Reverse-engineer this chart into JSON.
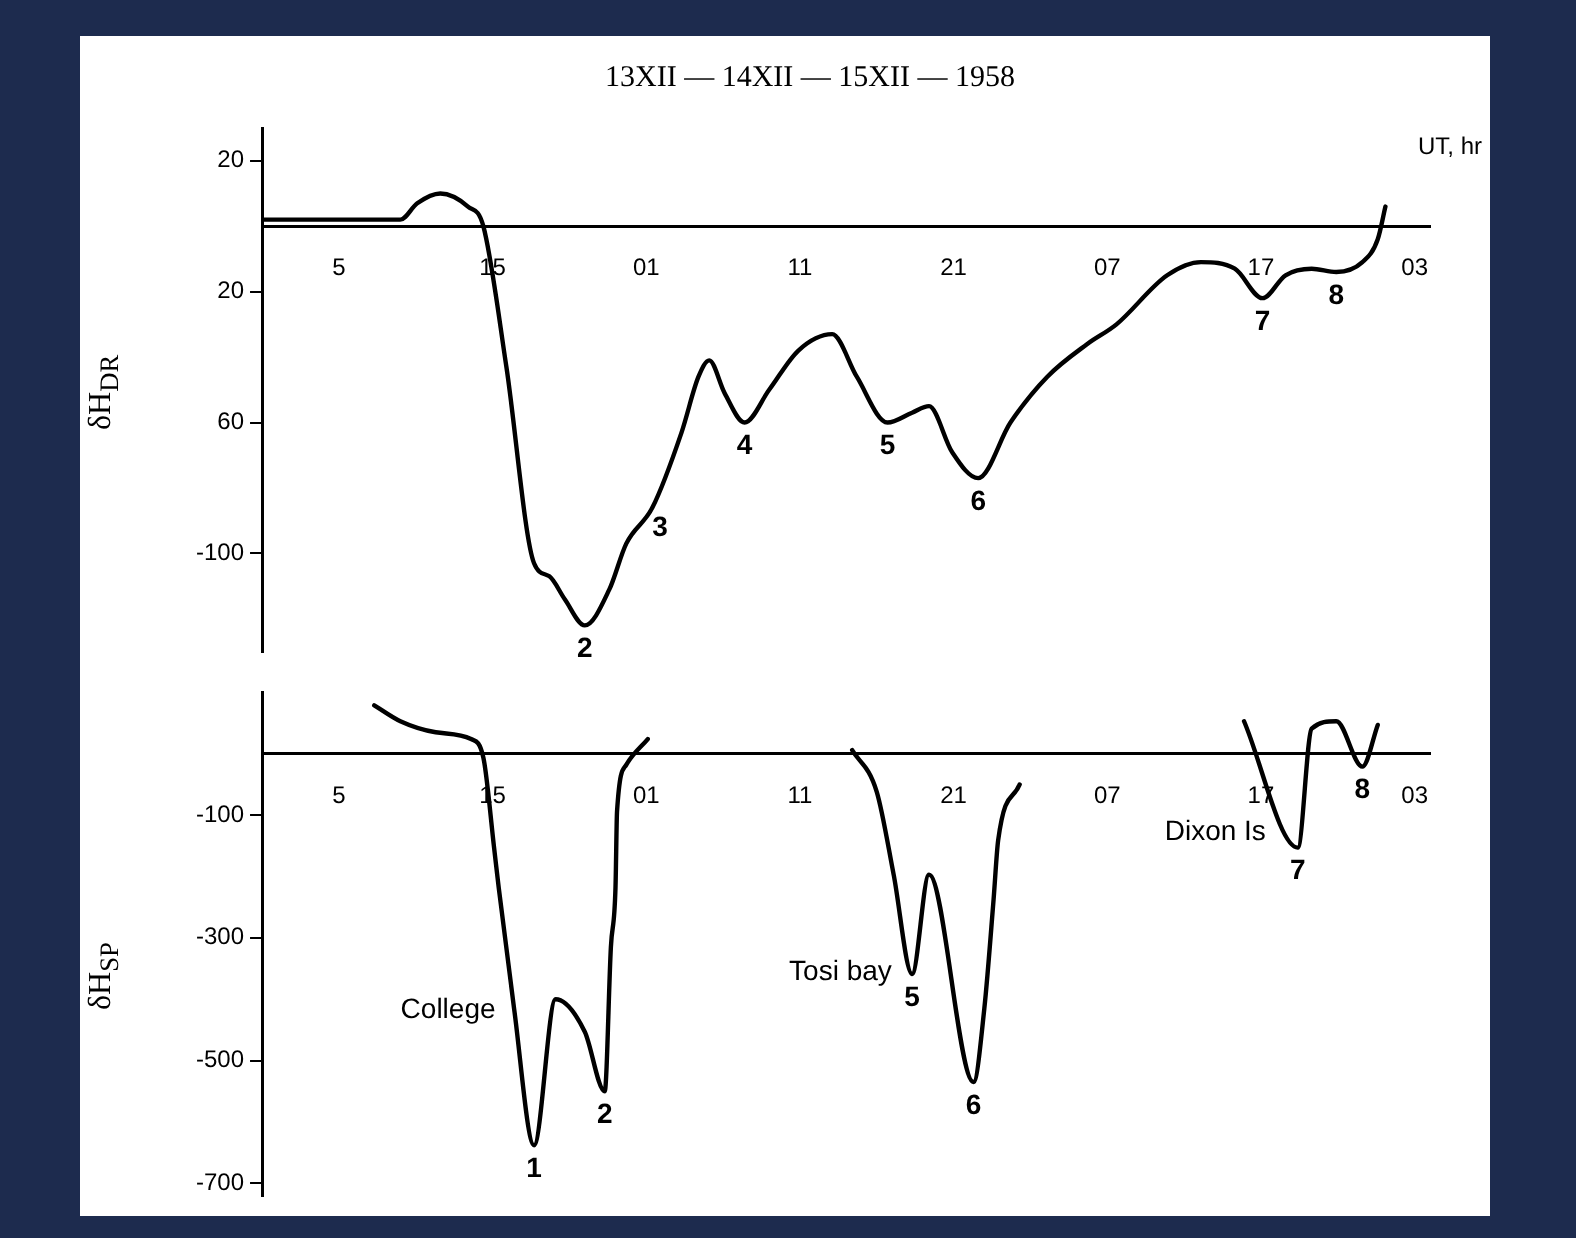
{
  "chart_data": [
    {
      "type": "line",
      "title": "13XII — 14XII — 15XII — 1958",
      "xlabel": "UT, hr",
      "ylabel": "δH$_{DR}$",
      "xlim": [
        "1958-12-13T00:00",
        "1958-12-16T04:00"
      ],
      "ylim": [
        -130,
        30
      ],
      "xticks": [
        {
          "value": "1958-12-13T05:00",
          "label": "5"
        },
        {
          "value": "1958-12-13T15:00",
          "label": "15"
        },
        {
          "value": "1958-12-14T01:00",
          "label": "01"
        },
        {
          "value": "1958-12-14T11:00",
          "label": "11"
        },
        {
          "value": "1958-12-14T21:00",
          "label": "21"
        },
        {
          "value": "1958-12-15T07:00",
          "label": "07"
        },
        {
          "value": "1958-12-15T17:00",
          "label": "17"
        },
        {
          "value": "1958-12-16T03:00",
          "label": "03"
        }
      ],
      "yticks": [
        20,
        {
          "value": -20,
          "label": "20"
        },
        {
          "value": -60,
          "label": "60"
        },
        -100
      ],
      "grid": false,
      "legend": false,
      "marker": "none",
      "line_style": "solid",
      "series": [
        {
          "color": "#000000",
          "x": [
            "1958-12-13T00:00",
            "1958-12-13T09:00",
            "1958-12-13T10:06",
            "1958-12-13T11:36",
            "1958-12-13T13:24",
            "1958-12-13T14:24",
            "1958-12-13T15:54",
            "1958-12-13T17:42",
            "1958-12-13T18:42",
            "1958-12-13T19:42",
            "1958-12-13T21:00",
            "1958-12-13T22:36",
            "1958-12-13T23:42",
            "1958-12-14T01:24",
            "1958-12-14T03:18",
            "1958-12-14T04:24",
            "1958-12-14T05:06",
            "1958-12-14T06:06",
            "1958-12-14T07:24",
            "1958-12-14T09:00",
            "1958-12-14T10:54",
            "1958-12-14T13:06",
            "1958-12-14T14:42",
            "1958-12-14T16:42",
            "1958-12-14T18:18",
            "1958-12-14T19:24",
            "1958-12-14T20:54",
            "1958-12-14T22:36",
            "1958-12-15T00:42",
            "1958-12-15T03:06",
            "1958-12-15T05:42",
            "1958-12-15T07:36",
            "1958-12-15T10:54",
            "1958-12-15T13:06",
            "1958-12-15T15:18",
            "1958-12-15T17:06",
            "1958-12-15T18:36",
            "1958-12-15T20:18",
            "1958-12-15T21:54",
            "1958-12-15T23:36",
            "1958-12-16T00:36",
            "1958-12-16T01:06"
          ],
          "values": [
            2,
            2,
            7,
            10,
            6,
            0,
            -43,
            -103,
            -107,
            -114,
            -122,
            -111,
            -97,
            -86,
            -63,
            -46,
            -41,
            -51,
            -60,
            -50,
            -38,
            -33,
            -46,
            -60,
            -57,
            -55,
            -69,
            -77,
            -60,
            -46,
            -36,
            -30,
            -15,
            -11,
            -13,
            -22,
            -15,
            -13,
            -14,
            -11,
            -4,
            6
          ]
        }
      ],
      "annotations": [
        {
          "text": "2",
          "x": "1958-12-13T21:00",
          "y": -122
        },
        {
          "text": "3",
          "x": "1958-12-14T01:54",
          "y": -85
        },
        {
          "text": "4",
          "x": "1958-12-14T07:24",
          "y": -60
        },
        {
          "text": "5",
          "x": "1958-12-14T16:42",
          "y": -60
        },
        {
          "text": "6",
          "x": "1958-12-14T22:36",
          "y": -77
        },
        {
          "text": "7",
          "x": "1958-12-15T17:06",
          "y": -22
        },
        {
          "text": "8",
          "x": "1958-12-15T21:54",
          "y": -14
        }
      ]
    },
    {
      "type": "line",
      "ylabel": "δH$_{SP}$",
      "xlim": [
        "1958-12-13T00:00",
        "1958-12-16T04:00"
      ],
      "ylim": [
        -720,
        100
      ],
      "xticks": [
        {
          "value": "1958-12-13T05:00",
          "label": "5"
        },
        {
          "value": "1958-12-13T15:00",
          "label": "15"
        },
        {
          "value": "1958-12-14T01:00",
          "label": "01"
        },
        {
          "value": "1958-12-14T11:00",
          "label": "11"
        },
        {
          "value": "1958-12-14T21:00",
          "label": "21"
        },
        {
          "value": "1958-12-15T07:00",
          "label": "07"
        },
        {
          "value": "1958-12-15T17:00",
          "label": "17"
        },
        {
          "value": "1958-12-16T03:00",
          "label": "03"
        }
      ],
      "yticks": [
        -100,
        -300,
        -500,
        -700
      ],
      "grid": false,
      "legend": false,
      "marker": "none",
      "line_style": "solid",
      "series": [
        {
          "name": "College",
          "color": "#000000",
          "x": [
            "1958-12-13T07:18",
            "1958-12-13T09:00",
            "1958-12-13T11:18",
            "1958-12-13T13:36",
            "1958-12-13T14:24",
            "1958-12-13T15:06",
            "1958-12-13T15:24",
            "1958-12-13T16:24",
            "1958-12-13T17:42",
            "1958-12-13T19:06",
            "1958-12-13T21:00",
            "1958-12-13T22:18",
            "1958-12-13T22:42",
            "1958-12-13T23:00",
            "1958-12-13T23:06",
            "1958-12-13T23:42",
            "1958-12-14T01:06"
          ],
          "values": [
            79,
            53,
            35,
            24,
            -6,
            -153,
            -218,
            -415,
            -638,
            -400,
            -453,
            -550,
            -315,
            -218,
            -94,
            -18,
            24
          ]
        },
        {
          "name": "Tosi bay",
          "color": "#000000",
          "x": [
            "1958-12-14T14:24",
            "1958-12-14T16:00",
            "1958-12-14T17:06",
            "1958-12-14T18:18",
            "1958-12-14T19:24",
            "1958-12-14T22:18",
            "1958-12-14T23:00",
            "1958-12-14T23:36",
            "1958-12-14T23:54",
            "1958-12-15T01:18"
          ],
          "values": [
            6,
            -62,
            -197,
            -359,
            -197,
            -535,
            -415,
            -238,
            -141,
            -50
          ]
        },
        {
          "name": "Dixon Is",
          "color": "#000000",
          "x": [
            "1958-12-15T15:54",
            "1958-12-15T19:24",
            "1958-12-15T20:18",
            "1958-12-15T21:54",
            "1958-12-15T23:36",
            "1958-12-16T00:36"
          ],
          "values": [
            53,
            -153,
            41,
            53,
            -21,
            47
          ]
        }
      ],
      "annotations": [
        {
          "text": "1",
          "x": "1958-12-13T17:42",
          "y": -638
        },
        {
          "text": "2",
          "x": "1958-12-13T22:18",
          "y": -550
        },
        {
          "text": "5",
          "x": "1958-12-14T18:18",
          "y": -359
        },
        {
          "text": "6",
          "x": "1958-12-14T22:18",
          "y": -535
        },
        {
          "text": "7",
          "x": "1958-12-15T19:24",
          "y": -153
        },
        {
          "text": "8",
          "x": "1958-12-15T23:36",
          "y": -21
        }
      ]
    }
  ]
}
